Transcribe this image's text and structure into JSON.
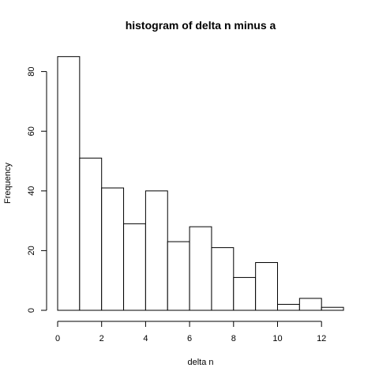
{
  "chart_data": {
    "type": "bar",
    "title": "histogram of delta n minus a",
    "xlabel": "delta n",
    "ylabel": "Frequency",
    "bins": [
      {
        "start": 0,
        "end": 1,
        "count": 85
      },
      {
        "start": 1,
        "end": 2,
        "count": 51
      },
      {
        "start": 2,
        "end": 3,
        "count": 41
      },
      {
        "start": 3,
        "end": 4,
        "count": 29
      },
      {
        "start": 4,
        "end": 5,
        "count": 40
      },
      {
        "start": 5,
        "end": 6,
        "count": 23
      },
      {
        "start": 6,
        "end": 7,
        "count": 28
      },
      {
        "start": 7,
        "end": 8,
        "count": 21
      },
      {
        "start": 8,
        "end": 9,
        "count": 11
      },
      {
        "start": 9,
        "end": 10,
        "count": 16
      },
      {
        "start": 10,
        "end": 11,
        "count": 2
      },
      {
        "start": 11,
        "end": 12,
        "count": 4
      },
      {
        "start": 12,
        "end": 13,
        "count": 1
      }
    ],
    "xticks": [
      0,
      2,
      4,
      6,
      8,
      10,
      12
    ],
    "yticks": [
      0,
      20,
      40,
      60,
      80
    ],
    "xlim": [
      0,
      13
    ],
    "ylim": [
      0,
      85
    ],
    "grid": false,
    "bar_fill": "#ffffff",
    "bar_stroke": "#000000"
  }
}
